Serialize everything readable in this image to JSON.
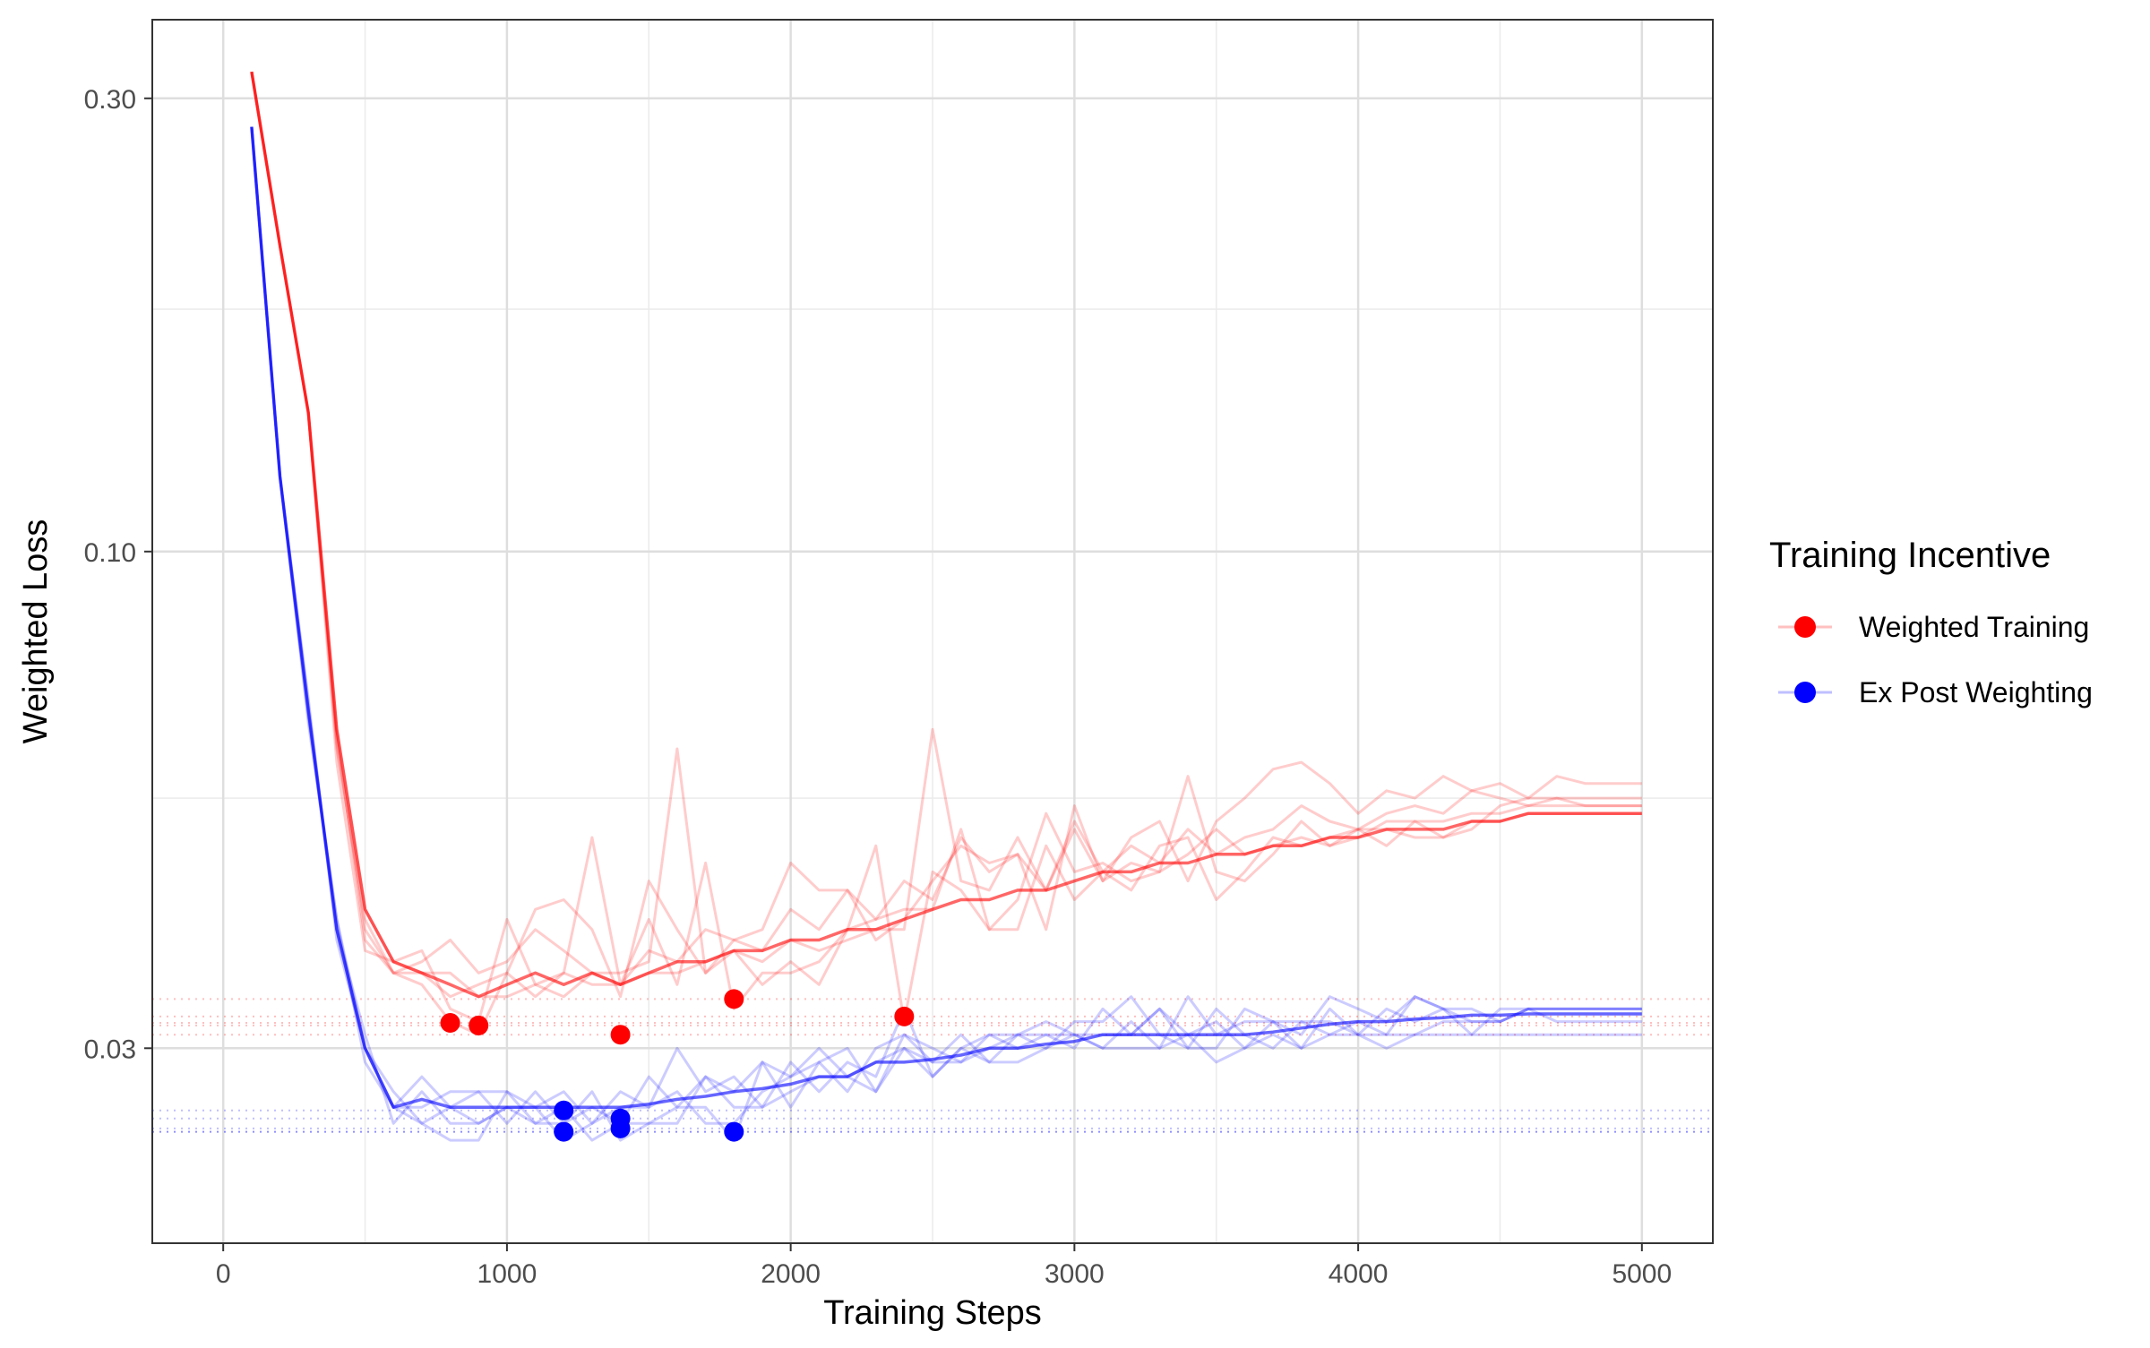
{
  "chart_data": {
    "type": "line",
    "title": "",
    "xlabel": "Training Steps",
    "ylabel": "Weighted Loss",
    "xlim": [
      -250,
      5250
    ],
    "ylim": [
      0.0187,
      0.363
    ],
    "y_scale": "log",
    "x_ticks": [
      0,
      1000,
      2000,
      3000,
      4000,
      5000
    ],
    "x_tick_labels": [
      "0",
      "1000",
      "2000",
      "3000",
      "4000",
      "5000"
    ],
    "y_ticks": [
      0.03,
      0.1,
      0.3
    ],
    "y_tick_labels": [
      "0.03",
      "0.10",
      "0.30"
    ],
    "y_minor_ticks": [
      0.055,
      0.18
    ],
    "x_minor_ticks": [
      500,
      1500,
      2500,
      3500,
      4500
    ],
    "grid": true,
    "legend": {
      "title": "Training Incentive",
      "position": "right",
      "entries": [
        {
          "label": "Weighted Training",
          "color": "#ff0000"
        },
        {
          "label": "Ex Post Weighting",
          "color": "#0000ff"
        }
      ]
    },
    "x": [
      100,
      200,
      300,
      400,
      500,
      600,
      700,
      800,
      900,
      1000,
      1100,
      1200,
      1300,
      1400,
      1500,
      1600,
      1700,
      1800,
      1900,
      2000,
      2100,
      2200,
      2300,
      2400,
      2500,
      2600,
      2700,
      2800,
      2900,
      3000,
      3100,
      3200,
      3300,
      3400,
      3500,
      3600,
      3700,
      3800,
      3900,
      4000,
      4100,
      4200,
      4300,
      4400,
      4500,
      4600,
      4700,
      4800,
      4900,
      5000
    ],
    "series": [
      {
        "group": "Weighted Training",
        "color": "#ff0000",
        "role": "mean",
        "values": [
          0.32,
          0.21,
          0.14,
          0.065,
          0.042,
          0.037,
          0.036,
          0.035,
          0.034,
          0.035,
          0.036,
          0.035,
          0.036,
          0.035,
          0.036,
          0.037,
          0.037,
          0.038,
          0.038,
          0.039,
          0.039,
          0.04,
          0.04,
          0.041,
          0.042,
          0.043,
          0.043,
          0.044,
          0.044,
          0.045,
          0.046,
          0.046,
          0.047,
          0.047,
          0.048,
          0.048,
          0.049,
          0.049,
          0.05,
          0.05,
          0.051,
          0.051,
          0.051,
          0.052,
          0.052,
          0.053,
          0.053,
          0.053,
          0.053,
          0.053
        ]
      },
      {
        "group": "Weighted Training",
        "color": "#ff0000",
        "role": "run",
        "values": [
          0.32,
          0.21,
          0.14,
          0.062,
          0.041,
          0.036,
          0.037,
          0.039,
          0.036,
          0.037,
          0.04,
          0.038,
          0.036,
          0.035,
          0.038,
          0.037,
          0.04,
          0.039,
          0.038,
          0.042,
          0.04,
          0.044,
          0.041,
          0.045,
          0.043,
          0.05,
          0.046,
          0.048,
          0.044,
          0.052,
          0.046,
          0.049,
          0.047,
          0.051,
          0.048,
          0.05,
          0.051,
          0.054,
          0.052,
          0.051,
          0.053,
          0.054,
          0.053,
          0.056,
          0.055,
          0.054,
          0.055,
          0.055,
          0.055,
          0.055
        ]
      },
      {
        "group": "Weighted Training",
        "color": "#ff0000",
        "role": "run",
        "values": [
          0.32,
          0.21,
          0.14,
          0.063,
          0.04,
          0.036,
          0.035,
          0.032,
          0.031,
          0.036,
          0.042,
          0.043,
          0.04,
          0.034,
          0.045,
          0.04,
          0.036,
          0.039,
          0.04,
          0.047,
          0.044,
          0.044,
          0.039,
          0.041,
          0.045,
          0.049,
          0.047,
          0.048,
          0.04,
          0.054,
          0.045,
          0.05,
          0.052,
          0.045,
          0.052,
          0.055,
          0.059,
          0.06,
          0.057,
          0.053,
          0.056,
          0.055,
          0.058,
          0.056,
          0.057,
          0.055,
          0.055,
          0.054,
          0.054,
          0.054
        ]
      },
      {
        "group": "Weighted Training",
        "color": "#ff0000",
        "role": "run",
        "values": [
          0.32,
          0.21,
          0.14,
          0.06,
          0.038,
          0.037,
          0.038,
          0.033,
          0.032,
          0.041,
          0.035,
          0.036,
          0.05,
          0.035,
          0.041,
          0.035,
          0.047,
          0.033,
          0.036,
          0.036,
          0.037,
          0.04,
          0.041,
          0.042,
          0.042,
          0.051,
          0.04,
          0.043,
          0.053,
          0.046,
          0.047,
          0.045,
          0.046,
          0.048,
          0.051,
          0.048,
          0.049,
          0.05,
          0.049,
          0.051,
          0.049,
          0.052,
          0.05,
          0.051,
          0.054,
          0.055,
          0.058,
          0.057,
          0.057,
          0.057
        ]
      },
      {
        "group": "Weighted Training",
        "color": "#ff0000",
        "role": "run",
        "values": [
          0.32,
          0.21,
          0.14,
          0.064,
          0.039,
          0.036,
          0.036,
          0.036,
          0.034,
          0.034,
          0.035,
          0.034,
          0.036,
          0.036,
          0.037,
          0.062,
          0.036,
          0.038,
          0.035,
          0.037,
          0.035,
          0.04,
          0.049,
          0.032,
          0.046,
          0.044,
          0.04,
          0.04,
          0.049,
          0.043,
          0.046,
          0.044,
          0.049,
          0.05,
          0.043,
          0.046,
          0.05,
          0.049,
          0.05,
          0.051,
          0.051,
          0.05,
          0.05,
          0.052,
          0.052,
          0.053,
          0.053,
          0.053,
          0.053,
          0.053
        ]
      },
      {
        "group": "Weighted Training",
        "color": "#ff0000",
        "role": "run",
        "values": [
          0.32,
          0.21,
          0.14,
          0.065,
          0.042,
          0.037,
          0.036,
          0.034,
          0.035,
          0.036,
          0.034,
          0.036,
          0.035,
          0.035,
          0.036,
          0.036,
          0.037,
          0.038,
          0.037,
          0.039,
          0.038,
          0.039,
          0.04,
          0.04,
          0.065,
          0.045,
          0.044,
          0.05,
          0.044,
          0.051,
          0.045,
          0.047,
          0.046,
          0.058,
          0.046,
          0.045,
          0.048,
          0.052,
          0.049,
          0.05,
          0.052,
          0.052,
          0.052,
          0.053,
          0.053,
          0.054,
          0.054,
          0.054,
          0.054,
          0.054
        ]
      },
      {
        "group": "Ex Post Weighting",
        "color": "#0000ff",
        "role": "mean",
        "values": [
          0.28,
          0.12,
          0.068,
          0.04,
          0.03,
          0.026,
          0.0265,
          0.026,
          0.026,
          0.026,
          0.026,
          0.026,
          0.026,
          0.026,
          0.0262,
          0.0265,
          0.0267,
          0.027,
          0.0272,
          0.0275,
          0.028,
          0.028,
          0.029,
          0.029,
          0.0292,
          0.0295,
          0.03,
          0.03,
          0.0303,
          0.0305,
          0.031,
          0.031,
          0.031,
          0.031,
          0.031,
          0.031,
          0.0312,
          0.0315,
          0.0318,
          0.032,
          0.032,
          0.0322,
          0.0323,
          0.0325,
          0.0325,
          0.0326,
          0.0326,
          0.0326,
          0.0326,
          0.0326
        ]
      },
      {
        "group": "Ex Post Weighting",
        "color": "#0000ff",
        "role": "run",
        "values": [
          0.28,
          0.12,
          0.066,
          0.041,
          0.03,
          0.026,
          0.025,
          0.026,
          0.025,
          0.026,
          0.026,
          0.024,
          0.025,
          0.026,
          0.026,
          0.027,
          0.025,
          0.025,
          0.027,
          0.028,
          0.029,
          0.027,
          0.03,
          0.031,
          0.03,
          0.029,
          0.03,
          0.031,
          0.031,
          0.03,
          0.033,
          0.031,
          0.033,
          0.031,
          0.032,
          0.03,
          0.032,
          0.031,
          0.034,
          0.033,
          0.032,
          0.034,
          0.033,
          0.032,
          0.032,
          0.033,
          0.033,
          0.033,
          0.033,
          0.033
        ]
      },
      {
        "group": "Ex Post Weighting",
        "color": "#0000ff",
        "role": "run",
        "values": [
          0.28,
          0.12,
          0.068,
          0.04,
          0.031,
          0.025,
          0.027,
          0.025,
          0.025,
          0.026,
          0.025,
          0.026,
          0.024,
          0.025,
          0.028,
          0.026,
          0.026,
          0.024,
          0.029,
          0.028,
          0.03,
          0.028,
          0.029,
          0.03,
          0.029,
          0.031,
          0.029,
          0.031,
          0.03,
          0.032,
          0.032,
          0.034,
          0.031,
          0.03,
          0.033,
          0.031,
          0.03,
          0.032,
          0.032,
          0.031,
          0.033,
          0.032,
          0.033,
          0.033,
          0.032,
          0.033,
          0.033,
          0.033,
          0.033,
          0.033
        ]
      },
      {
        "group": "Ex Post Weighting",
        "color": "#0000ff",
        "role": "run",
        "values": [
          0.28,
          0.12,
          0.07,
          0.039,
          0.03,
          0.026,
          0.026,
          0.027,
          0.027,
          0.025,
          0.027,
          0.025,
          0.027,
          0.024,
          0.025,
          0.026,
          0.028,
          0.026,
          0.026,
          0.029,
          0.027,
          0.029,
          0.028,
          0.033,
          0.028,
          0.03,
          0.031,
          0.03,
          0.031,
          0.031,
          0.03,
          0.032,
          0.03,
          0.034,
          0.031,
          0.032,
          0.032,
          0.03,
          0.033,
          0.031,
          0.031,
          0.034,
          0.033,
          0.031,
          0.033,
          0.033,
          0.032,
          0.032,
          0.032,
          0.032
        ]
      },
      {
        "group": "Ex Post Weighting",
        "color": "#0000ff",
        "role": "run",
        "values": [
          0.28,
          0.12,
          0.067,
          0.041,
          0.029,
          0.026,
          0.028,
          0.026,
          0.027,
          0.027,
          0.026,
          0.027,
          0.025,
          0.027,
          0.026,
          0.03,
          0.027,
          0.028,
          0.026,
          0.027,
          0.028,
          0.028,
          0.027,
          0.031,
          0.029,
          0.029,
          0.031,
          0.031,
          0.032,
          0.031,
          0.031,
          0.031,
          0.033,
          0.03,
          0.03,
          0.033,
          0.032,
          0.032,
          0.031,
          0.032,
          0.031,
          0.031,
          0.032,
          0.032,
          0.032,
          0.033,
          0.033,
          0.033,
          0.033,
          0.033
        ]
      },
      {
        "group": "Ex Post Weighting",
        "color": "#0000ff",
        "role": "run",
        "values": [
          0.28,
          0.12,
          0.069,
          0.04,
          0.03,
          0.027,
          0.025,
          0.024,
          0.024,
          0.027,
          0.025,
          0.025,
          0.026,
          0.025,
          0.025,
          0.025,
          0.028,
          0.027,
          0.029,
          0.026,
          0.029,
          0.03,
          0.027,
          0.03,
          0.028,
          0.03,
          0.029,
          0.029,
          0.03,
          0.031,
          0.03,
          0.03,
          0.03,
          0.031,
          0.029,
          0.03,
          0.031,
          0.03,
          0.031,
          0.031,
          0.03,
          0.031,
          0.031,
          0.031,
          0.031,
          0.031,
          0.031,
          0.031,
          0.031,
          0.031
        ]
      }
    ],
    "minima": [
      {
        "group": "Weighted Training",
        "color": "#ff0000",
        "points": [
          [
            800,
            0.0319
          ],
          [
            900,
            0.0317
          ],
          [
            1400,
            0.031
          ],
          [
            1800,
            0.0338
          ],
          [
            2400,
            0.0324
          ]
        ]
      },
      {
        "group": "Ex Post Weighting",
        "color": "#0000ff",
        "points": [
          [
            1200,
            0.0258
          ],
          [
            1200,
            0.0245
          ],
          [
            1400,
            0.0253
          ],
          [
            1400,
            0.0247
          ],
          [
            1800,
            0.0245
          ]
        ]
      }
    ]
  }
}
